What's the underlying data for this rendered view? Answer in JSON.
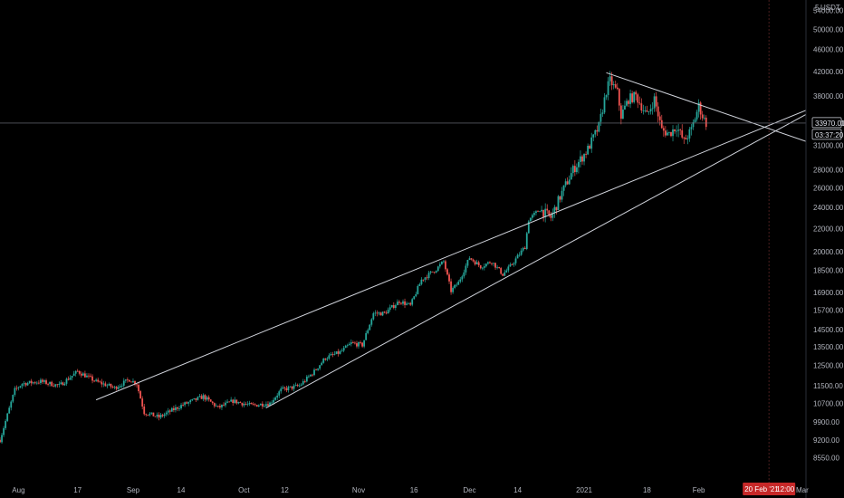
{
  "header": {
    "currency_label": "USDT",
    "scale_glyph": "5"
  },
  "price_readout": {
    "price": "33970.01",
    "countdown": "03:37:20"
  },
  "crosshair_label": {
    "date": "20 Feb '21",
    "time": "12:00"
  },
  "colors": {
    "background": "#000000",
    "up_candle": "#26a69a",
    "down_candle": "#ef5350",
    "trendline": "#d1d4dc",
    "price_line": "#787b86",
    "axis_text": "#b2b5be",
    "crosshair_badge": "#c62828"
  },
  "chart_data": {
    "type": "candlestick",
    "title": "",
    "ylabel": "",
    "y_scale": "log",
    "ylim": [
      7800,
      56000
    ],
    "y_ticks": [
      54000,
      50000,
      46000,
      42000,
      38000,
      34000,
      31000,
      28000,
      26000,
      24000,
      22000,
      20000,
      18500,
      16900,
      15700,
      14500,
      13500,
      12500,
      11500,
      10700,
      9900,
      9200,
      8550
    ],
    "y_tick_labels": [
      "54000.00",
      "50000.00",
      "46000.00",
      "42000.00",
      "38000.00",
      "34000.00",
      "31000.00",
      "28000.00",
      "26000.00",
      "24000.00",
      "22000.00",
      "20000.00",
      "18500.00",
      "16900.00",
      "15700.00",
      "14500.00",
      "13500.00",
      "12500.00",
      "11500.00",
      "10700.00",
      "9900.00",
      "9200.00",
      "8550.00"
    ],
    "x_range": [
      "2020-07-27",
      "2021-03-02"
    ],
    "x_ticks": [
      {
        "date": "2020-08-01",
        "label": "Aug"
      },
      {
        "date": "2020-08-17",
        "label": "17"
      },
      {
        "date": "2020-09-01",
        "label": "Sep"
      },
      {
        "date": "2020-09-14",
        "label": "14"
      },
      {
        "date": "2020-10-01",
        "label": "Oct"
      },
      {
        "date": "2020-10-12",
        "label": "12"
      },
      {
        "date": "2020-11-01",
        "label": "Nov"
      },
      {
        "date": "2020-11-16",
        "label": "16"
      },
      {
        "date": "2020-12-01",
        "label": "Dec"
      },
      {
        "date": "2020-12-14",
        "label": "14"
      },
      {
        "date": "2021-01-01",
        "label": "2021"
      },
      {
        "date": "2021-01-18",
        "label": "18"
      },
      {
        "date": "2021-02-01",
        "label": "Feb"
      },
      {
        "date": "2021-03-01",
        "label": "Mar"
      }
    ],
    "price_line": 33970.01,
    "crosshair_date": "2021-02-20",
    "close_path": [
      [
        "2020-07-27",
        9200
      ],
      [
        "2020-07-31",
        11300
      ],
      [
        "2020-08-02",
        11600
      ],
      [
        "2020-08-07",
        11700
      ],
      [
        "2020-08-12",
        11500
      ],
      [
        "2020-08-17",
        12200
      ],
      [
        "2020-08-22",
        11700
      ],
      [
        "2020-08-27",
        11400
      ],
      [
        "2020-08-31",
        11800
      ],
      [
        "2020-09-02",
        11600
      ],
      [
        "2020-09-04",
        10300
      ],
      [
        "2020-09-08",
        10100
      ],
      [
        "2020-09-14",
        10600
      ],
      [
        "2020-09-20",
        11000
      ],
      [
        "2020-09-24",
        10500
      ],
      [
        "2020-09-28",
        10800
      ],
      [
        "2020-10-03",
        10600
      ],
      [
        "2020-10-08",
        10700
      ],
      [
        "2020-10-11",
        11300
      ],
      [
        "2020-10-16",
        11500
      ],
      [
        "2020-10-20",
        12200
      ],
      [
        "2020-10-23",
        12900
      ],
      [
        "2020-10-27",
        13200
      ],
      [
        "2020-10-30",
        13700
      ],
      [
        "2020-11-02",
        13600
      ],
      [
        "2020-11-05",
        15500
      ],
      [
        "2020-11-08",
        15500
      ],
      [
        "2020-11-12",
        16300
      ],
      [
        "2020-11-15",
        16000
      ],
      [
        "2020-11-18",
        17800
      ],
      [
        "2020-11-22",
        18600
      ],
      [
        "2020-11-24",
        19200
      ],
      [
        "2020-11-26",
        17000
      ],
      [
        "2020-11-28",
        17600
      ],
      [
        "2020-12-01",
        19500
      ],
      [
        "2020-12-04",
        18800
      ],
      [
        "2020-12-07",
        19200
      ],
      [
        "2020-12-10",
        18200
      ],
      [
        "2020-12-12",
        18800
      ],
      [
        "2020-12-16",
        20400
      ],
      [
        "2020-12-17",
        22800
      ],
      [
        "2020-12-20",
        23800
      ],
      [
        "2020-12-23",
        23000
      ],
      [
        "2020-12-26",
        25500
      ],
      [
        "2020-12-29",
        28000
      ],
      [
        "2021-01-02",
        30500
      ],
      [
        "2021-01-05",
        33500
      ],
      [
        "2021-01-07",
        38800
      ],
      [
        "2021-01-08",
        40500
      ],
      [
        "2021-01-10",
        38500
      ],
      [
        "2021-01-11",
        35000
      ],
      [
        "2021-01-13",
        37500
      ],
      [
        "2021-01-15",
        38000
      ],
      [
        "2021-01-18",
        35000
      ],
      [
        "2021-01-20",
        37500
      ],
      [
        "2021-01-22",
        33000
      ],
      [
        "2021-01-24",
        32500
      ],
      [
        "2021-01-26",
        33500
      ],
      [
        "2021-01-28",
        31500
      ],
      [
        "2021-01-30",
        33000
      ],
      [
        "2021-02-01",
        36500
      ],
      [
        "2021-02-02",
        35000
      ],
      [
        "2021-02-03",
        33970
      ]
    ],
    "trendlines": [
      {
        "name": "upper-channel-line",
        "from": [
          "2020-08-22",
          10850
        ],
        "to": [
          "2021-03-02",
          35800
        ]
      },
      {
        "name": "lower-channel-line",
        "from": [
          "2020-10-07",
          10500
        ],
        "to": [
          "2021-03-02",
          35200
        ]
      },
      {
        "name": "descending-resistance-line",
        "from": [
          "2021-01-07",
          41800
        ],
        "to": [
          "2021-03-02",
          31500
        ]
      }
    ]
  }
}
